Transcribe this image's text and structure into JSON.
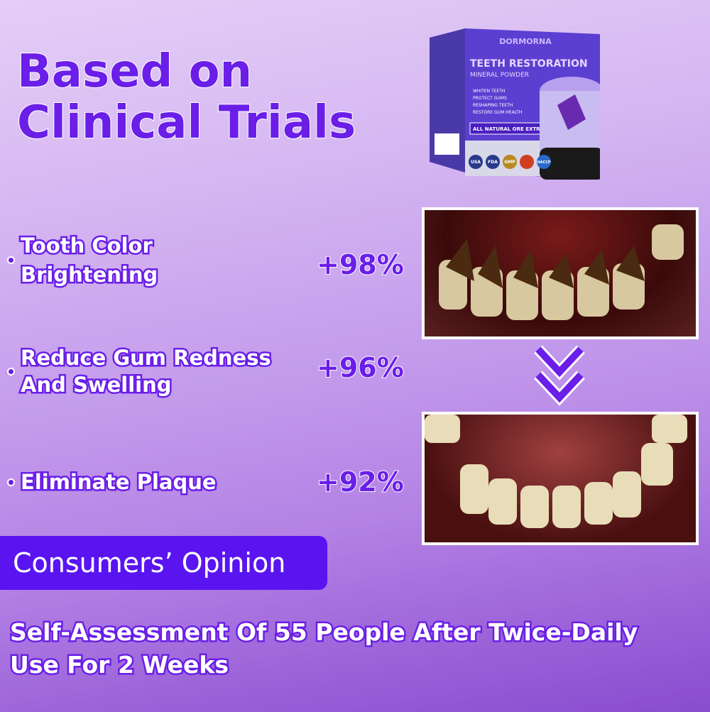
{
  "headline": {
    "line1": "Based on",
    "line2": "Clinical Trials"
  },
  "product": {
    "brand": "DORMORNA",
    "name": "TEETH RESTORATION",
    "subtitle": "MINERAL POWDER",
    "benefits": [
      "WHITEN TEETH",
      "PROTECT GUMS",
      "RESHAPING TEETH",
      "RESTORE GUM HEALTH"
    ],
    "tagline": "ALL NATURAL ORE EXTRACT",
    "badges": [
      "USA",
      "FDA",
      "GMP",
      "HACCP"
    ]
  },
  "features": [
    {
      "line1": "Tooth Color",
      "line2": "Brightening",
      "value": "+98%"
    },
    {
      "line1": "Reduce Gum Redness",
      "line2": "And Swelling",
      "value": "+96%"
    },
    {
      "line1": "Eliminate Plaque",
      "line2": "",
      "value": "+92%"
    }
  ],
  "photos": {
    "before": "teeth-before",
    "after": "teeth-after",
    "arrow": "double-chevron-down-icon"
  },
  "banner": "Consumers’ Opinion",
  "footnote": {
    "line1": "Self-Assessment Of 55 People After Twice-Daily",
    "line2": "Use For 2 Weeks"
  },
  "colors": {
    "accent": "#6a1ee8",
    "banner": "#5a14f0"
  }
}
